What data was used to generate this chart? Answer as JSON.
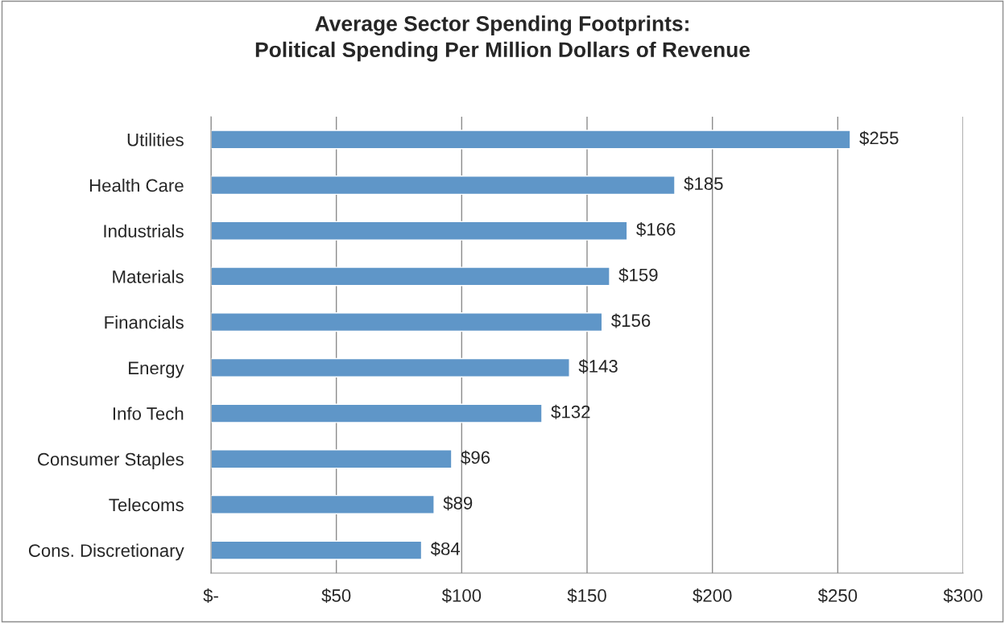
{
  "chart_data": {
    "type": "bar",
    "orientation": "horizontal",
    "title": "Average Sector Spending Footprints:\nPolitical Spending Per Million Dollars of Revenue",
    "categories": [
      "Utilities",
      "Health Care",
      "Industrials",
      "Materials",
      "Financials",
      "Energy",
      "Info Tech",
      "Consumer Staples",
      "Telecoms",
      "Cons. Discretionary"
    ],
    "values": [
      255,
      185,
      166,
      159,
      156,
      143,
      132,
      96,
      89,
      84
    ],
    "value_labels": [
      "$255",
      "$185",
      "$166",
      "$159",
      "$156",
      "$143",
      "$132",
      "$96",
      "$89",
      "$84"
    ],
    "color": "#5f96c8",
    "xlim": [
      0,
      300
    ],
    "xticks": [
      {
        "value": 0,
        "label": "$-"
      },
      {
        "value": 50,
        "label": "$50"
      },
      {
        "value": 100,
        "label": "$100"
      },
      {
        "value": 150,
        "label": "$150"
      },
      {
        "value": 200,
        "label": "$200"
      },
      {
        "value": 250,
        "label": "$250"
      },
      {
        "value": 300,
        "label": "$300"
      }
    ],
    "grid": "x",
    "legend": false
  }
}
